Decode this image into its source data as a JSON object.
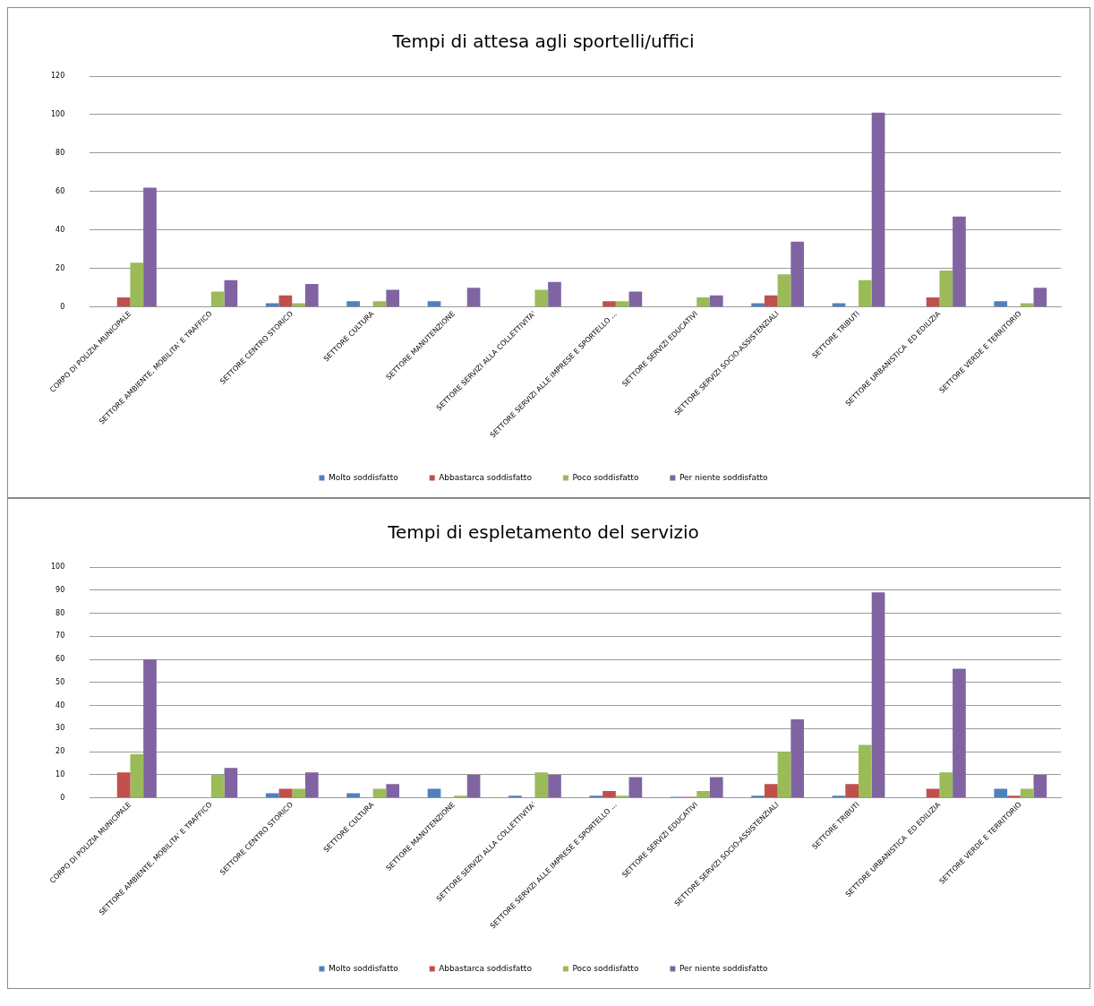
{
  "chart_data": [
    {
      "type": "bar",
      "title": "Tempi di attesa agli sportelli/uffici",
      "categories": [
        "CORPO DI POLIZIA MUNICIPALE",
        "SETTORE AMBIENTE, MOBILITA' E TRAFFICO",
        "SETTORE CENTRO STORICO",
        "SETTORE CULTURA",
        "SETTORE MANUTENZIONE",
        "SETTORE SERVIZI ALLA COLLETTIVITA'",
        "SETTORE SERVIZI ALLE IMPRESE E SPORTELLO ...",
        "SETTORE SERVIZI EDUCATIVI",
        "SETTORE SERVIZI SOCIO-ASSISTENZIALI",
        "SETTORE TRIBUTI",
        "SETTORE URBANISTICA  ED EDILIZIA",
        "SETTORE VERDE E TERRITORIO"
      ],
      "series": [
        {
          "name": "Molto soddisfatto",
          "color": "#4f81bd",
          "values": [
            0,
            0,
            2,
            3,
            3,
            0,
            0,
            0,
            2,
            2,
            0,
            3
          ]
        },
        {
          "name": "Abbastarca soddisfatto",
          "color": "#c0504d",
          "values": [
            5,
            0,
            6,
            0,
            0,
            0,
            3,
            0,
            6,
            0,
            5,
            0
          ]
        },
        {
          "name": "Poco soddisfatto",
          "color": "#9bbb59",
          "values": [
            23,
            8,
            2,
            3,
            0,
            9,
            3,
            5,
            17,
            14,
            19,
            2
          ]
        },
        {
          "name": "Per niente soddisfatto",
          "color": "#8064a2",
          "values": [
            62,
            14,
            12,
            9,
            10,
            13,
            8,
            6,
            34,
            101,
            47,
            10
          ]
        }
      ],
      "ylim": [
        0,
        120
      ],
      "yticks": [
        0,
        20,
        40,
        60,
        80,
        100,
        120
      ],
      "grid": "y",
      "legend": "bottom"
    },
    {
      "type": "bar",
      "title": "Tempi di espletamento del servizio",
      "categories": [
        "CORPO DI POLIZIA MUNICIPALE",
        "SETTORE AMBIENTE, MOBILITA' E TRAFFICO",
        "SETTORE CENTRO STORICO",
        "SETTORE CULTURA",
        "SETTORE MANUTENZIONE",
        "SETTORE SERVIZI ALLA COLLETTIVITA'",
        "SETTORE SERVIZI ALLE IMPRESE E SPORTELLO ...",
        "SETTORE SERVIZI EDUCATIVI",
        "SETTORE SERVIZI SOCIO-ASSISTENZIALI",
        "SETTORE TRIBUTI",
        "SETTORE URBANISTICA  ED EDILIZIA",
        "SETTORE VERDE E TERRITORIO"
      ],
      "series": [
        {
          "name": "Molto soddisfatto",
          "color": "#4f81bd",
          "values": [
            0,
            0,
            2,
            2,
            4,
            1,
            1,
            0.5,
            1,
            1,
            0,
            4
          ]
        },
        {
          "name": "Abbastarca soddisfatto",
          "color": "#c0504d",
          "values": [
            11,
            0,
            4,
            0,
            0,
            0,
            3,
            0.5,
            6,
            6,
            4,
            1
          ]
        },
        {
          "name": "Poco soddisfatto",
          "color": "#9bbb59",
          "values": [
            19,
            10,
            4,
            4,
            1,
            11,
            1,
            3,
            20,
            23,
            11,
            4
          ]
        },
        {
          "name": "Per niente soddisfatto",
          "color": "#8064a2",
          "values": [
            60,
            13,
            11,
            6,
            10,
            10,
            9,
            9,
            34,
            89,
            56,
            10
          ]
        }
      ],
      "ylim": [
        0,
        100
      ],
      "yticks": [
        0,
        10,
        20,
        30,
        40,
        50,
        60,
        70,
        80,
        90,
        100
      ],
      "grid": "y",
      "legend": "bottom"
    }
  ]
}
